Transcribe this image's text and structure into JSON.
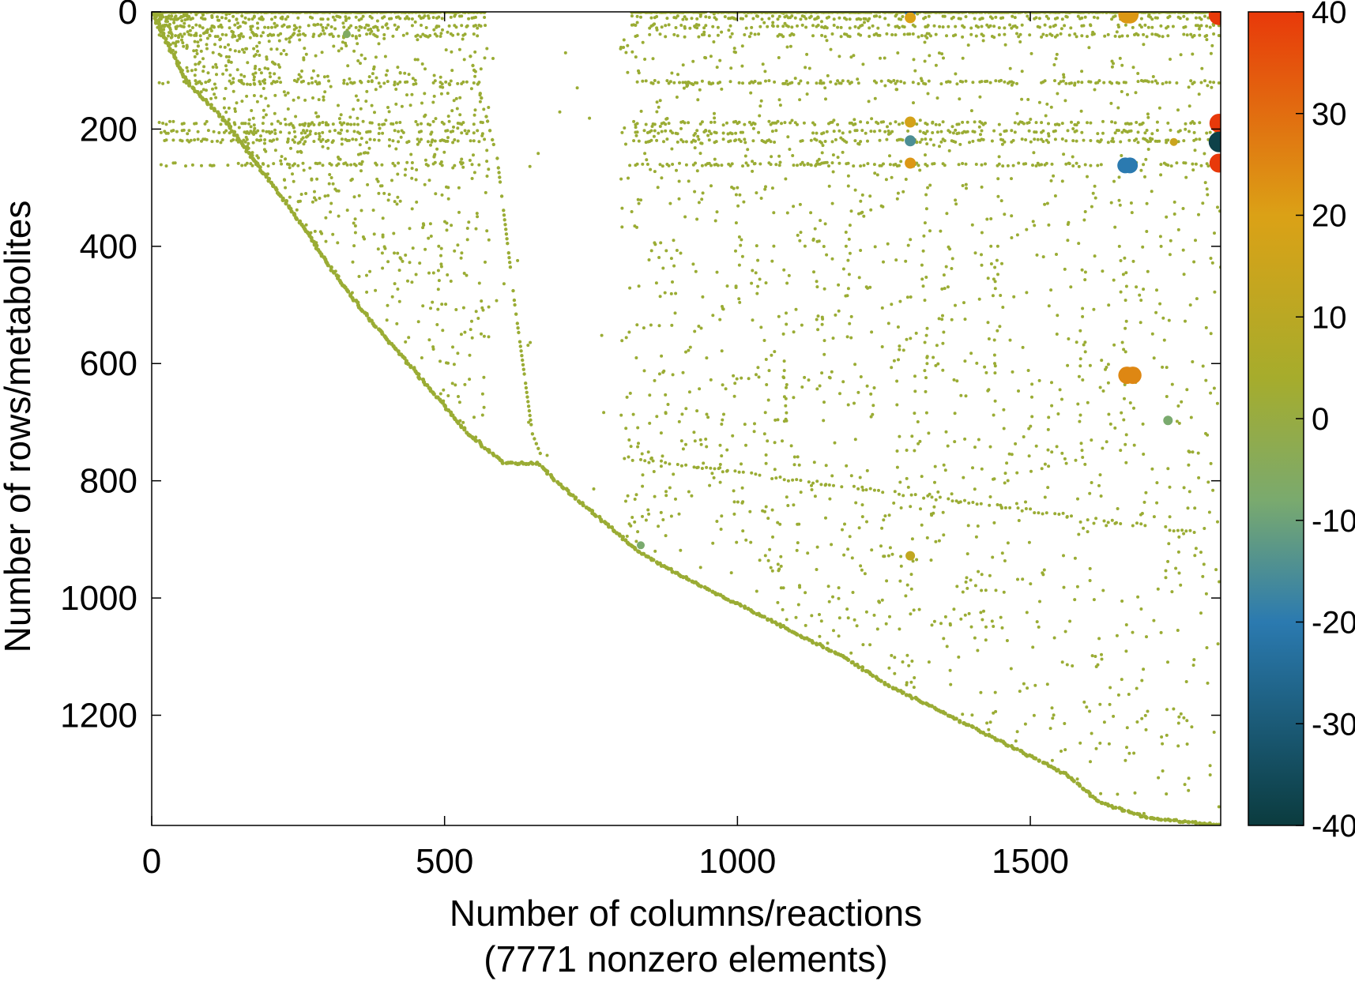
{
  "chart_data": {
    "type": "scatter",
    "title": "",
    "xlabel": "Number of columns/reactions",
    "xlabel_note": "(7771 nonzero elements)",
    "ylabel": "Number of rows/metabolites",
    "xlim": [
      0,
      1825
    ],
    "ylim": [
      1388,
      0
    ],
    "x_ticks": [
      "0",
      "500",
      "1000",
      "1500"
    ],
    "x_tick_values": [
      0,
      500,
      1000,
      1500
    ],
    "y_ticks": [
      "0",
      "200",
      "400",
      "600",
      "800",
      "1000",
      "1200"
    ],
    "y_tick_values": [
      0,
      200,
      400,
      600,
      800,
      1000,
      1200
    ],
    "colorbar": {
      "range": [
        -40,
        40
      ],
      "ticks": [
        "40",
        "30",
        "20",
        "10",
        "0",
        "-10",
        "-20",
        "-30",
        "-40"
      ],
      "tick_values": [
        40,
        30,
        20,
        10,
        0,
        -10,
        -20,
        -30,
        -40
      ],
      "colors": [
        "#0b3b3e",
        "#2b7ab0",
        "#7aaa6e",
        "#a6ac2c",
        "#dba116",
        "#e8390a"
      ]
    },
    "grid": false,
    "legend": "none",
    "default_color": "#9aac34",
    "diagonal_band": [
      [
        0,
        0
      ],
      [
        60,
        120
      ],
      [
        120,
        180
      ],
      [
        180,
        260
      ],
      [
        240,
        340
      ],
      [
        300,
        430
      ],
      [
        360,
        510
      ],
      [
        420,
        580
      ],
      [
        480,
        650
      ],
      [
        540,
        720
      ],
      [
        600,
        770
      ],
      [
        660,
        770
      ],
      [
        700,
        810
      ],
      [
        760,
        860
      ],
      [
        830,
        920
      ],
      [
        900,
        960
      ],
      [
        1000,
        1010
      ],
      [
        1100,
        1060
      ],
      [
        1180,
        1100
      ],
      [
        1260,
        1150
      ],
      [
        1360,
        1200
      ],
      [
        1460,
        1250
      ],
      [
        1560,
        1300
      ],
      [
        1620,
        1350
      ],
      [
        1700,
        1375
      ],
      [
        1825,
        1388
      ]
    ],
    "stripe_rows": [
      0,
      10,
      25,
      40,
      120,
      190,
      205,
      220,
      260
    ],
    "stripe_ranges": [
      [
        10,
        570
      ],
      [
        820,
        1825
      ]
    ],
    "highlights": [
      {
        "x": 1295,
        "y": 0,
        "v": -20,
        "r": 7
      },
      {
        "x": 1295,
        "y": 10,
        "v": 20,
        "r": 7
      },
      {
        "x": 1665,
        "y": 5,
        "v": 22,
        "r": 11
      },
      {
        "x": 1670,
        "y": 5,
        "v": 22,
        "r": 11
      },
      {
        "x": 1820,
        "y": 0,
        "v": -35,
        "r": 11
      },
      {
        "x": 1822,
        "y": 5,
        "v": 40,
        "r": 13
      },
      {
        "x": 1295,
        "y": 188,
        "v": 18,
        "r": 7
      },
      {
        "x": 1295,
        "y": 220,
        "v": -15,
        "r": 7
      },
      {
        "x": 1295,
        "y": 258,
        "v": 22,
        "r": 7
      },
      {
        "x": 1662,
        "y": 262,
        "v": -20,
        "r": 10
      },
      {
        "x": 1670,
        "y": 262,
        "v": -20,
        "r": 10
      },
      {
        "x": 1745,
        "y": 222,
        "v": 15,
        "r": 5
      },
      {
        "x": 1822,
        "y": 190,
        "v": 40,
        "r": 12
      },
      {
        "x": 1822,
        "y": 222,
        "v": -38,
        "r": 13
      },
      {
        "x": 1822,
        "y": 258,
        "v": 40,
        "r": 12
      },
      {
        "x": 1665,
        "y": 620,
        "v": 25,
        "r": 11
      },
      {
        "x": 1675,
        "y": 620,
        "v": 25,
        "r": 11
      },
      {
        "x": 1735,
        "y": 697,
        "v": -8,
        "r": 6
      },
      {
        "x": 1295,
        "y": 928,
        "v": 12,
        "r": 6
      },
      {
        "x": 835,
        "y": 910,
        "v": -8,
        "r": 5
      },
      {
        "x": 333,
        "y": 38,
        "v": -6,
        "r": 5
      }
    ]
  }
}
